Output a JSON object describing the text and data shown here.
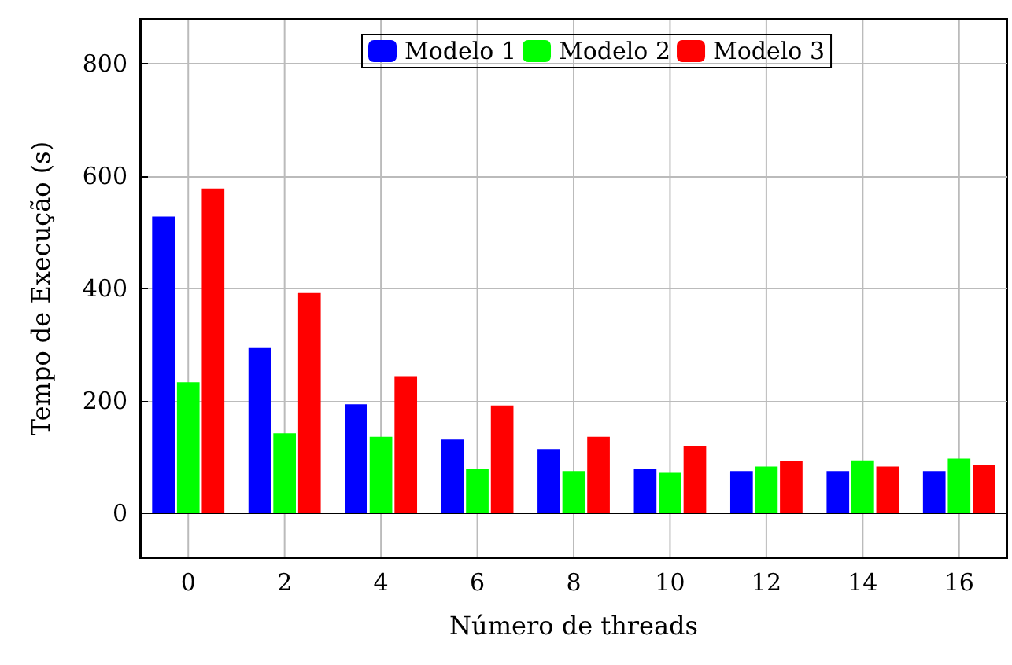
{
  "chart_data": {
    "type": "bar",
    "xlabel": "Número de threads",
    "ylabel": "Tempo de Execução (s)",
    "categories": [
      "0",
      "2",
      "4",
      "6",
      "8",
      "10",
      "12",
      "14",
      "16"
    ],
    "series": [
      {
        "name": "Modelo 1",
        "color": "#0000ff",
        "values": [
          528,
          294,
          194,
          131,
          114,
          78,
          75,
          75,
          75
        ]
      },
      {
        "name": "Modelo 2",
        "color": "#00ff00",
        "values": [
          233,
          142,
          136,
          78,
          75,
          72,
          83,
          94,
          97
        ]
      },
      {
        "name": "Modelo 3",
        "color": "#ff0000",
        "values": [
          578,
          392,
          244,
          192,
          136,
          119,
          92,
          83,
          86
        ]
      }
    ],
    "ylim": [
      -80,
      880
    ],
    "yticks": [
      0,
      200,
      400,
      600,
      800
    ],
    "grid": true,
    "legend": "top"
  }
}
